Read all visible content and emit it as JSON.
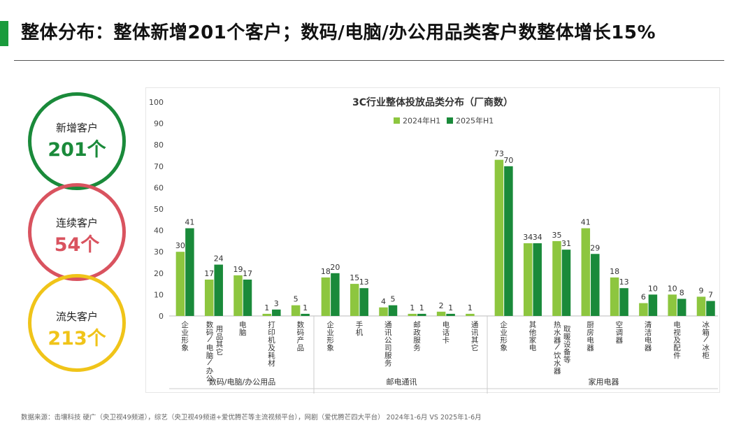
{
  "header": {
    "title": "整体分布：整体新增201个客户；数码/电脑/办公用品类客户数整体增长15%"
  },
  "summary": [
    {
      "label": "新增客户",
      "value": "201个",
      "color": "#1a8a3a"
    },
    {
      "label": "连续客户",
      "value": "54个",
      "color": "#d9535f"
    },
    {
      "label": "流失客户",
      "value": "213个",
      "color": "#f0c419"
    }
  ],
  "chart_data": {
    "type": "bar",
    "title": "3C行业整体投放品类分布（厂商数）",
    "ylim": [
      0,
      100
    ],
    "yticks": [
      0,
      10,
      20,
      30,
      40,
      50,
      60,
      70,
      80,
      90,
      100
    ],
    "legend_position": "top",
    "series": [
      {
        "name": "2024年H1",
        "color": "#8dc63f"
      },
      {
        "name": "2025年H1",
        "color": "#1a8a3a"
      }
    ],
    "groups": [
      {
        "name": "数码/电脑/办公用品",
        "categories": [
          {
            "label": [
              "企业形象"
            ],
            "values": [
              30,
              41
            ]
          },
          {
            "label": [
              "数码/电脑/办公",
              "用品其它"
            ],
            "values": [
              17,
              24
            ]
          },
          {
            "label": [
              "电脑"
            ],
            "values": [
              19,
              17
            ]
          },
          {
            "label": [
              "打印机及耗材"
            ],
            "values": [
              1,
              3
            ]
          },
          {
            "label": [
              "数码产品"
            ],
            "values": [
              5,
              1
            ]
          }
        ]
      },
      {
        "name": "邮电通讯",
        "categories": [
          {
            "label": [
              "企业形象"
            ],
            "values": [
              18,
              20
            ]
          },
          {
            "label": [
              "手机"
            ],
            "values": [
              15,
              13
            ]
          },
          {
            "label": [
              "通讯公司服务"
            ],
            "values": [
              4,
              5
            ]
          },
          {
            "label": [
              "邮政服务"
            ],
            "values": [
              1,
              1
            ]
          },
          {
            "label": [
              "电话卡"
            ],
            "values": [
              2,
              1
            ]
          },
          {
            "label": [
              "通讯其它"
            ],
            "values": [
              1,
              null
            ]
          }
        ]
      },
      {
        "name": "家用电器",
        "categories": [
          {
            "label": [
              "企业形象"
            ],
            "values": [
              73,
              70
            ]
          },
          {
            "label": [
              "其他家电"
            ],
            "values": [
              34,
              34
            ]
          },
          {
            "label": [
              "热水器/饮水器",
              "取暖设备等"
            ],
            "values": [
              35,
              31
            ]
          },
          {
            "label": [
              "厨房电器"
            ],
            "values": [
              41,
              29
            ]
          },
          {
            "label": [
              "空调器"
            ],
            "values": [
              18,
              13
            ]
          },
          {
            "label": [
              "清洁电器"
            ],
            "values": [
              6,
              10
            ]
          },
          {
            "label": [
              "电视及配件"
            ],
            "values": [
              10,
              8
            ]
          },
          {
            "label": [
              "冰箱/冰柜"
            ],
            "values": [
              9,
              7
            ]
          }
        ]
      }
    ]
  },
  "footer": {
    "source": "数据来源：击壤科技 硬广（央卫视49频道），综艺（央卫视49频道+爱优腾芒等主流视频平台），网剧（爱优腾芒四大平台） 2024年1-6月 VS 2025年1-6月"
  }
}
